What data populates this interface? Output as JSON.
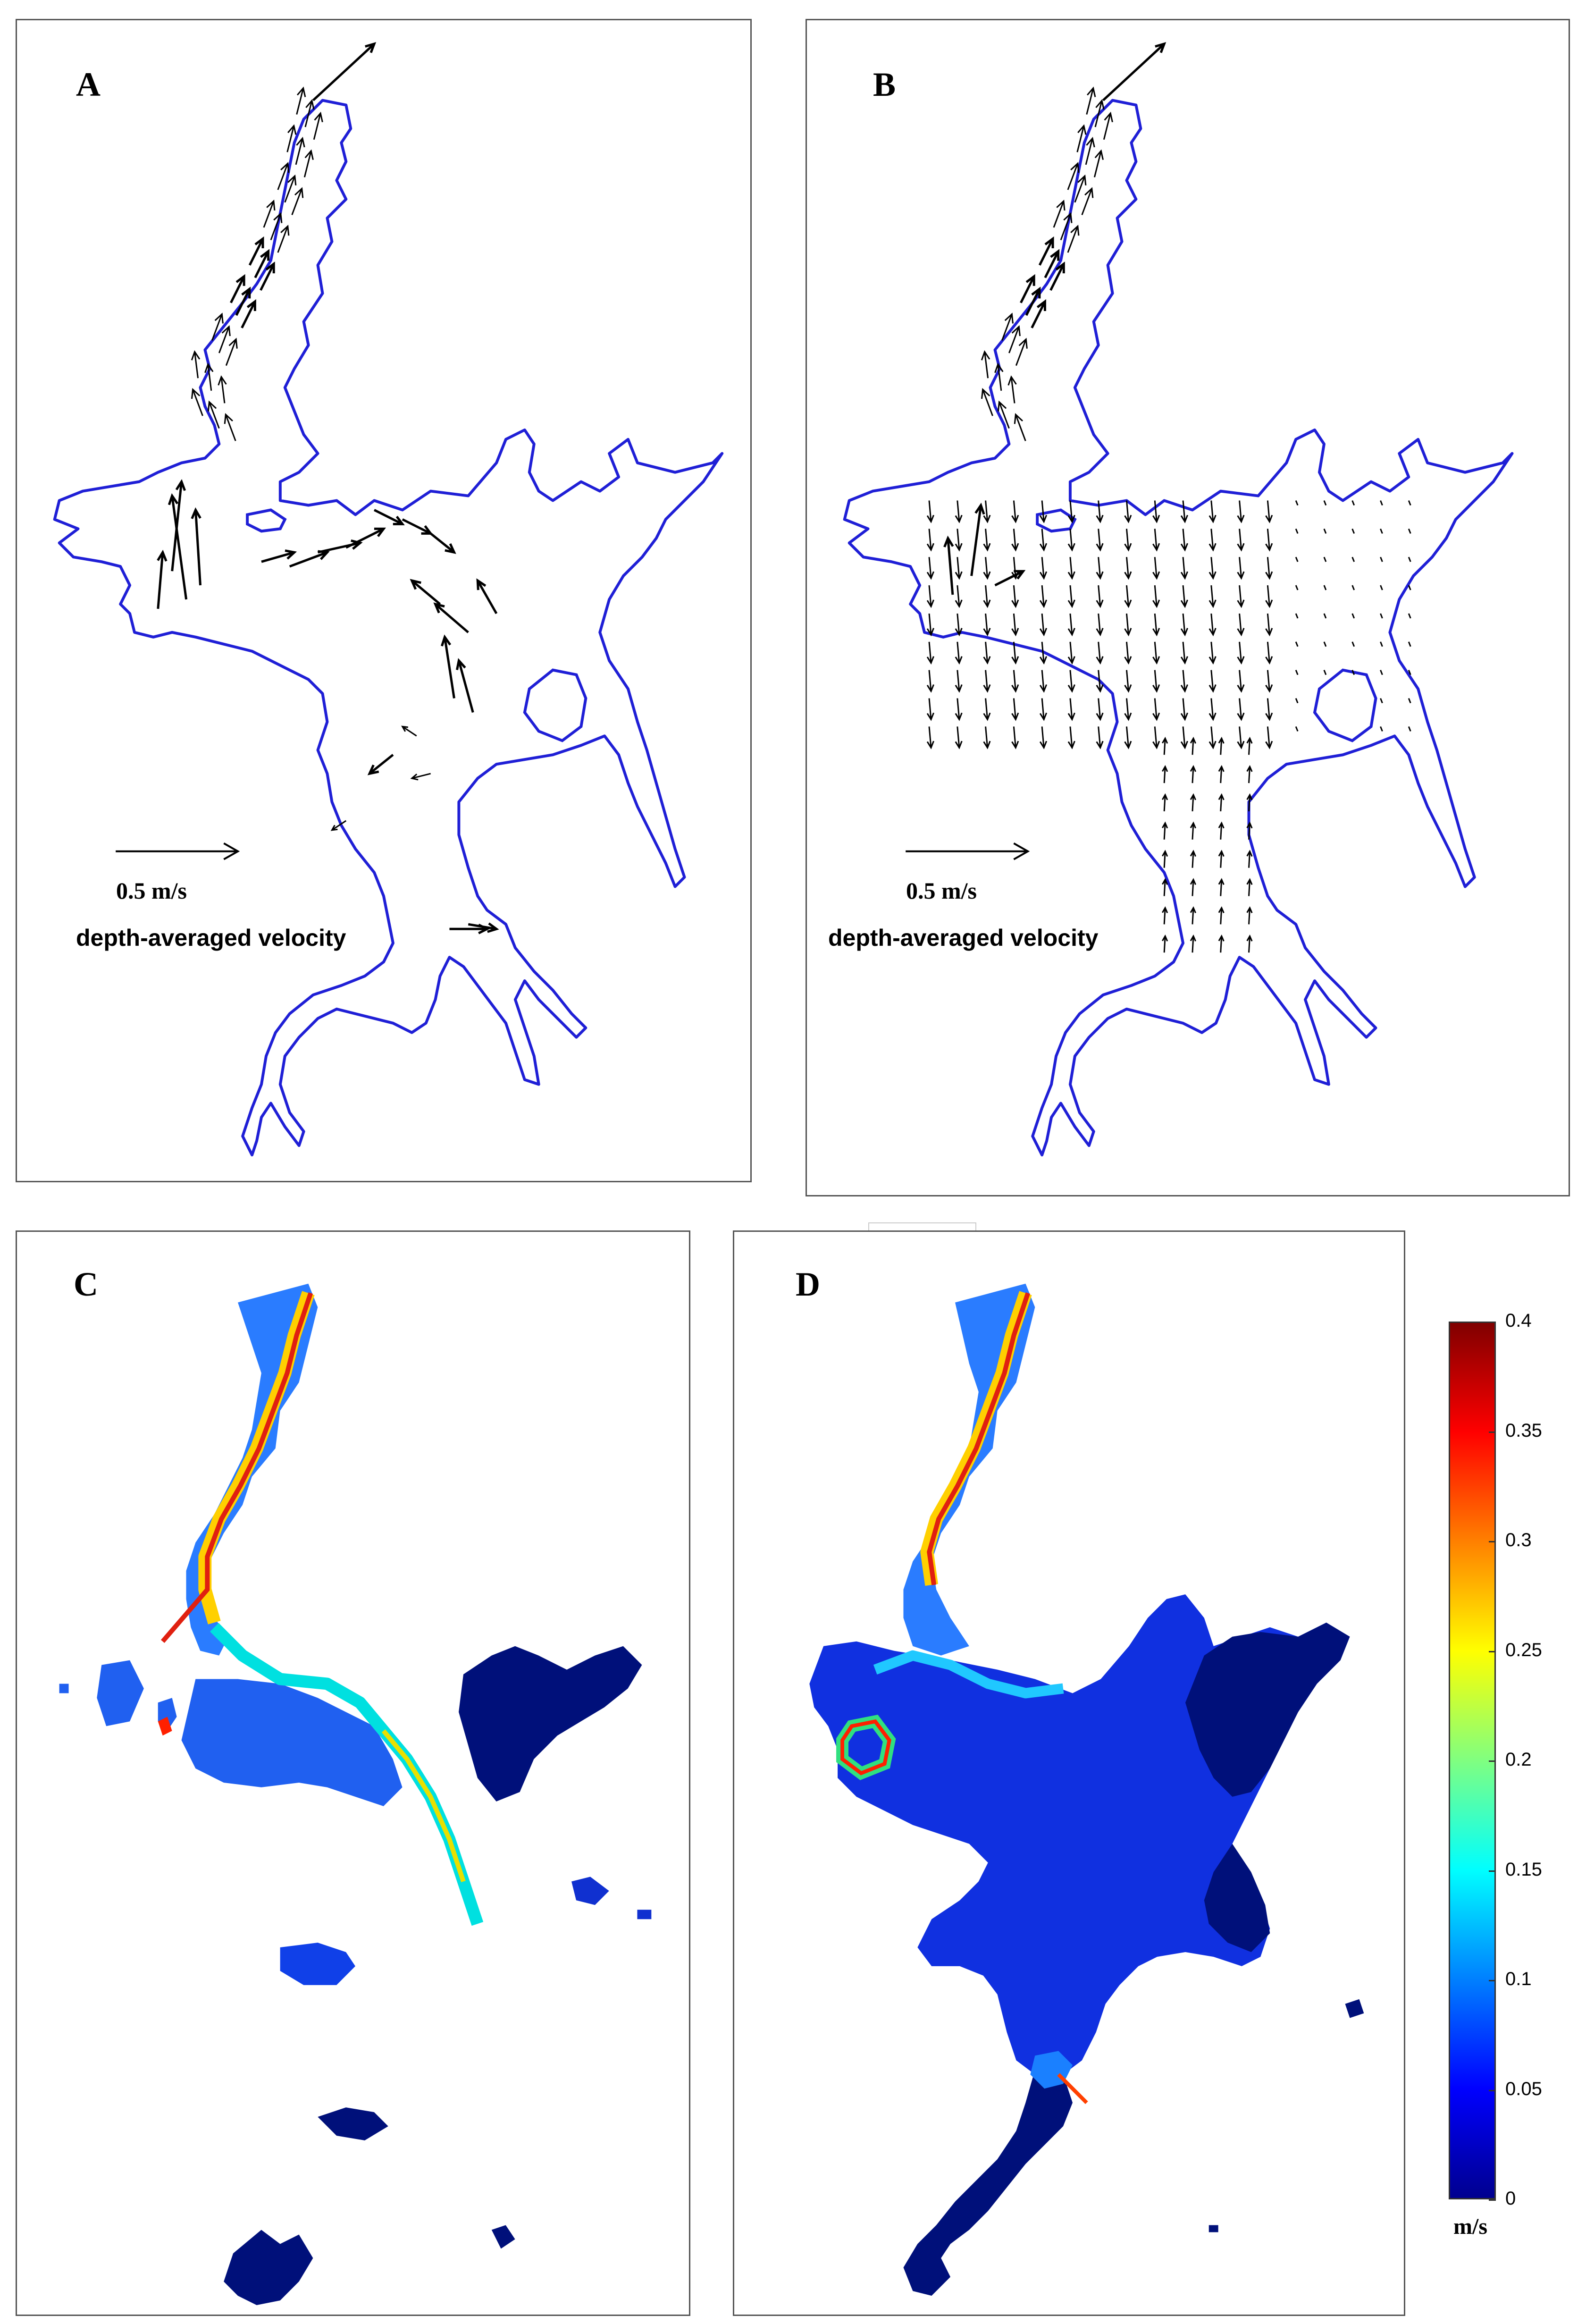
{
  "panels": {
    "a": {
      "letter": "A",
      "scale_label": "0.5 m/s",
      "velocity_label": "depth-averaged velocity"
    },
    "b": {
      "letter": "B",
      "scale_label": "0.5 m/s",
      "velocity_label": "depth-averaged velocity"
    },
    "c": {
      "letter": "C"
    },
    "d": {
      "letter": "D"
    }
  },
  "colorbar": {
    "ticks": [
      "0.4",
      "0.35",
      "0.3",
      "0.25",
      "0.2",
      "0.15",
      "0.1",
      "0.05",
      "0"
    ],
    "unit": "m/s",
    "range": [
      0,
      0.4
    ],
    "colors": [
      "#00008f",
      "#0000ff",
      "#0080ff",
      "#00ffff",
      "#80ff80",
      "#ffff00",
      "#ff8000",
      "#ff0000",
      "#800000"
    ]
  },
  "colors": {
    "boundary": "#1f1fd6",
    "arrow": "#000000"
  }
}
